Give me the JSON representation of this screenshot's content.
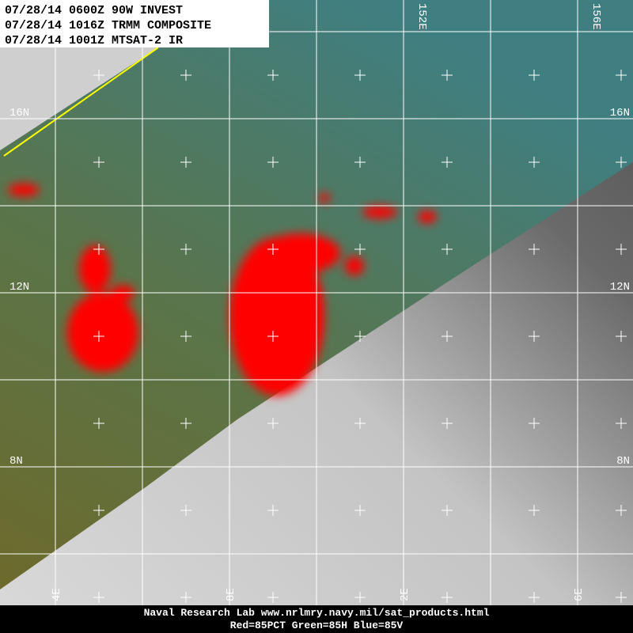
{
  "header": {
    "lines": [
      "07/28/14 0600Z 90W INVEST",
      "07/28/14 1016Z TRMM COMPOSITE",
      "07/28/14 1001Z MTSAT-2 IR"
    ]
  },
  "map": {
    "lat_labels": [
      "16N",
      "12N",
      "8N"
    ],
    "top_lon_labels": [
      "152E",
      "156E"
    ],
    "bottom_lon_labels": [
      "4E",
      "8E",
      "2E",
      "6E"
    ]
  },
  "footer": {
    "lines": [
      "Naval Research Lab  www.nrlmry.navy.mil/sat_products.html",
      "Red=85PCT  Green=85H  Blue=85V"
    ]
  }
}
